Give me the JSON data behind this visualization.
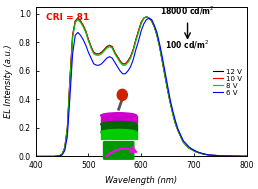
{
  "title": "",
  "xlabel": "Wavelength (nm)",
  "ylabel": "EL Intensity (a.u.)",
  "xlim": [
    400,
    800
  ],
  "ylim": [
    0,
    1.05
  ],
  "background_color": "#ffffff",
  "cri_text": "CRI = 81",
  "cri_color": "#ff0000",
  "annotation_18000": "18000 cd/m",
  "annotation_100": "100 cd/m",
  "legend_entries": [
    "12 V",
    "10 V",
    "8 V",
    "6 V"
  ],
  "legend_colors": [
    "#000000",
    "#ff0000",
    "#00cc00",
    "#0000ff"
  ],
  "wavelengths": [
    400,
    405,
    410,
    415,
    420,
    425,
    430,
    435,
    440,
    445,
    450,
    455,
    460,
    465,
    470,
    475,
    480,
    485,
    490,
    495,
    500,
    505,
    510,
    515,
    520,
    525,
    530,
    535,
    540,
    545,
    550,
    555,
    560,
    565,
    570,
    575,
    580,
    585,
    590,
    595,
    600,
    605,
    610,
    615,
    620,
    625,
    630,
    635,
    640,
    645,
    650,
    655,
    660,
    665,
    670,
    675,
    680,
    685,
    690,
    695,
    700,
    705,
    710,
    715,
    720,
    725,
    730,
    735,
    740,
    745,
    750,
    755,
    760,
    765,
    770,
    775,
    780,
    785,
    790,
    795,
    800
  ],
  "el_12v": [
    0.0,
    0.0,
    0.0,
    0.0,
    0.0,
    0.0,
    0.0,
    0.0,
    0.002,
    0.005,
    0.015,
    0.06,
    0.2,
    0.55,
    0.85,
    0.95,
    0.97,
    0.95,
    0.92,
    0.88,
    0.82,
    0.77,
    0.73,
    0.72,
    0.72,
    0.73,
    0.75,
    0.77,
    0.78,
    0.77,
    0.73,
    0.7,
    0.67,
    0.65,
    0.65,
    0.67,
    0.7,
    0.75,
    0.82,
    0.88,
    0.94,
    0.97,
    0.98,
    0.97,
    0.95,
    0.91,
    0.85,
    0.77,
    0.67,
    0.57,
    0.47,
    0.38,
    0.3,
    0.23,
    0.18,
    0.14,
    0.1,
    0.08,
    0.06,
    0.05,
    0.04,
    0.03,
    0.025,
    0.02,
    0.015,
    0.012,
    0.01,
    0.008,
    0.007,
    0.006,
    0.005,
    0.004,
    0.004,
    0.003,
    0.003,
    0.002,
    0.002,
    0.002,
    0.001,
    0.001,
    0.001
  ],
  "el_10v": [
    0.0,
    0.0,
    0.0,
    0.0,
    0.0,
    0.0,
    0.0,
    0.0,
    0.002,
    0.005,
    0.015,
    0.06,
    0.2,
    0.55,
    0.85,
    0.95,
    0.97,
    0.95,
    0.92,
    0.88,
    0.82,
    0.77,
    0.73,
    0.72,
    0.72,
    0.73,
    0.75,
    0.77,
    0.78,
    0.77,
    0.73,
    0.7,
    0.67,
    0.65,
    0.65,
    0.67,
    0.7,
    0.75,
    0.82,
    0.88,
    0.94,
    0.97,
    0.98,
    0.97,
    0.95,
    0.91,
    0.85,
    0.77,
    0.67,
    0.57,
    0.47,
    0.38,
    0.3,
    0.23,
    0.18,
    0.14,
    0.1,
    0.08,
    0.06,
    0.05,
    0.04,
    0.03,
    0.025,
    0.02,
    0.015,
    0.012,
    0.01,
    0.008,
    0.007,
    0.006,
    0.005,
    0.004,
    0.004,
    0.003,
    0.003,
    0.002,
    0.002,
    0.002,
    0.001,
    0.001,
    0.001
  ],
  "el_8v": [
    0.0,
    0.0,
    0.0,
    0.0,
    0.0,
    0.0,
    0.0,
    0.0,
    0.002,
    0.005,
    0.015,
    0.06,
    0.19,
    0.53,
    0.83,
    0.94,
    0.96,
    0.94,
    0.91,
    0.87,
    0.81,
    0.76,
    0.72,
    0.71,
    0.71,
    0.72,
    0.74,
    0.76,
    0.77,
    0.76,
    0.72,
    0.69,
    0.66,
    0.64,
    0.64,
    0.66,
    0.69,
    0.74,
    0.81,
    0.87,
    0.93,
    0.97,
    0.98,
    0.97,
    0.95,
    0.91,
    0.85,
    0.77,
    0.67,
    0.57,
    0.47,
    0.38,
    0.3,
    0.23,
    0.18,
    0.14,
    0.1,
    0.08,
    0.06,
    0.05,
    0.04,
    0.03,
    0.025,
    0.02,
    0.015,
    0.012,
    0.01,
    0.008,
    0.007,
    0.006,
    0.005,
    0.004,
    0.004,
    0.003,
    0.003,
    0.002,
    0.002,
    0.002,
    0.001,
    0.001,
    0.001
  ],
  "el_6v": [
    0.0,
    0.0,
    0.0,
    0.0,
    0.0,
    0.0,
    0.0,
    0.0,
    0.001,
    0.003,
    0.01,
    0.04,
    0.14,
    0.42,
    0.72,
    0.85,
    0.87,
    0.85,
    0.82,
    0.78,
    0.73,
    0.69,
    0.65,
    0.64,
    0.64,
    0.65,
    0.67,
    0.69,
    0.7,
    0.69,
    0.66,
    0.63,
    0.6,
    0.58,
    0.58,
    0.6,
    0.63,
    0.68,
    0.75,
    0.81,
    0.88,
    0.93,
    0.96,
    0.97,
    0.96,
    0.92,
    0.87,
    0.79,
    0.7,
    0.6,
    0.5,
    0.4,
    0.32,
    0.25,
    0.19,
    0.15,
    0.11,
    0.09,
    0.07,
    0.055,
    0.045,
    0.035,
    0.028,
    0.022,
    0.017,
    0.013,
    0.01,
    0.008,
    0.007,
    0.006,
    0.005,
    0.004,
    0.004,
    0.003,
    0.003,
    0.002,
    0.002,
    0.002,
    0.001,
    0.001,
    0.001
  ],
  "inset_arrow_color": "#ff00ff",
  "device_layers": {
    "top_sphere_color": "#cc0000",
    "stem_color": "#333333",
    "layer1_color": "#cc00cc",
    "layer2_color": "#006600",
    "layer3_color": "#00cc00",
    "base_color": "#009900"
  }
}
